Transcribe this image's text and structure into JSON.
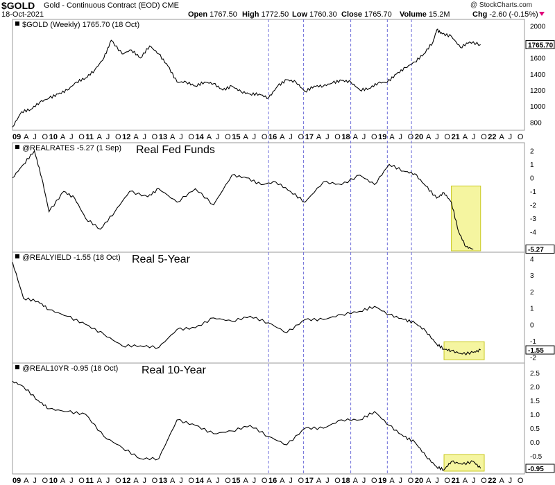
{
  "header": {
    "symbol": "$GOLD",
    "name": "Gold - Continuous Contract (EOD)",
    "exchange": "CME",
    "date": "18-Oct-2021",
    "open_label": "Open",
    "open": "1767.50",
    "high_label": "High",
    "high": "1772.50",
    "low_label": "Low",
    "low": "1760.30",
    "close_label": "Close",
    "close": "1765.70",
    "volume_label": "Volume",
    "volume": "15.2M",
    "chg_label": "Chg",
    "chg": "-2.60 (-0.15%)",
    "credit": "@ StockCharts.com"
  },
  "colors": {
    "line": "#000000",
    "grid_vertical": "#6a6ad8",
    "highlight": "#f5f5a0",
    "highlight_border": "#c8c820",
    "arrow": "#e0007a"
  },
  "chart_data": [
    {
      "type": "line",
      "title": "$GOLD (Weekly) 1765.70 (18 Oct)",
      "ylim": [
        700,
        2080
      ],
      "yticks": [
        "800",
        "1000",
        "1200",
        "1400",
        "1600",
        "2000"
      ],
      "last_value": "1765.70",
      "x_time": [
        2009.0,
        2009.25,
        2009.5,
        2009.75,
        2010.0,
        2010.25,
        2010.5,
        2010.75,
        2011.0,
        2011.25,
        2011.5,
        2011.7,
        2012.0,
        2012.25,
        2012.5,
        2012.75,
        2013.0,
        2013.25,
        2013.5,
        2013.75,
        2014.0,
        2014.25,
        2014.5,
        2014.75,
        2015.0,
        2015.25,
        2015.5,
        2015.75,
        2016.0,
        2016.25,
        2016.5,
        2016.75,
        2017.0,
        2017.25,
        2017.5,
        2017.75,
        2018.0,
        2018.25,
        2018.5,
        2018.75,
        2019.0,
        2019.25,
        2019.5,
        2019.75,
        2020.0,
        2020.25,
        2020.5,
        2020.6,
        2020.75,
        2021.0,
        2021.25,
        2021.5,
        2021.8
      ],
      "values": [
        740,
        930,
        960,
        1050,
        1100,
        1150,
        1200,
        1300,
        1350,
        1450,
        1600,
        1820,
        1650,
        1700,
        1600,
        1750,
        1650,
        1500,
        1300,
        1300,
        1250,
        1300,
        1280,
        1200,
        1250,
        1180,
        1150,
        1150,
        1100,
        1250,
        1330,
        1300,
        1180,
        1250,
        1250,
        1290,
        1320,
        1300,
        1200,
        1220,
        1290,
        1300,
        1400,
        1480,
        1550,
        1650,
        1800,
        1950,
        1900,
        1870,
        1730,
        1800,
        1765.7
      ]
    },
    {
      "type": "line",
      "title": "@REALRATES -5.27 (1 Sep)",
      "annotation": "Real Fed Funds",
      "ylim": [
        -5.5,
        2.6
      ],
      "yticks": [
        "-4",
        "-3",
        "-2",
        "-1",
        "0",
        "1",
        "2"
      ],
      "last_value": "-5.27",
      "x_time": [
        2009.0,
        2009.3,
        2009.6,
        2009.8,
        2010.0,
        2010.4,
        2010.7,
        2011.0,
        2011.4,
        2011.8,
        2012.2,
        2012.7,
        2013.0,
        2013.5,
        2014.0,
        2014.5,
        2015.0,
        2015.4,
        2015.8,
        2016.2,
        2016.6,
        2017.0,
        2017.5,
        2018.0,
        2018.5,
        2018.9,
        2019.3,
        2019.7,
        2020.0,
        2020.3,
        2020.6,
        2020.8,
        2021.0,
        2021.2,
        2021.4,
        2021.6
      ],
      "values": [
        0.0,
        1.0,
        2.0,
        0.0,
        -2.5,
        -1.0,
        -1.5,
        -3.0,
        -3.8,
        -2.5,
        -1.0,
        -1.4,
        -0.8,
        -1.8,
        -0.8,
        -2.0,
        0.2,
        0.0,
        -0.5,
        -0.3,
        -1.0,
        -1.8,
        -0.3,
        -0.5,
        0.2,
        -0.5,
        1.0,
        0.5,
        0.3,
        -0.6,
        -1.5,
        -1.1,
        -1.8,
        -4.0,
        -5.1,
        -5.27
      ]
    },
    {
      "type": "line",
      "title": "@REALYIELD -1.55 (18 Oct)",
      "annotation": "Real 5-Year",
      "ylim": [
        -2.35,
        4.4
      ],
      "yticks": [
        "-2",
        "-1",
        "0",
        "1",
        "2",
        "3",
        "4"
      ],
      "last_value": "-1.55",
      "x_time": [
        2009.0,
        2009.3,
        2009.7,
        2010.0,
        2010.5,
        2011.0,
        2011.5,
        2012.0,
        2012.5,
        2013.0,
        2013.5,
        2014.0,
        2014.5,
        2015.0,
        2015.5,
        2016.0,
        2016.5,
        2017.0,
        2017.5,
        2018.0,
        2018.5,
        2018.9,
        2019.3,
        2019.7,
        2020.0,
        2020.3,
        2020.6,
        2020.8,
        2021.0,
        2021.3,
        2021.6,
        2021.8
      ],
      "values": [
        3.8,
        1.6,
        1.4,
        0.9,
        0.5,
        0.0,
        -0.6,
        -1.3,
        -1.3,
        -1.4,
        -0.3,
        -0.2,
        0.4,
        0.2,
        0.5,
        0.1,
        -0.5,
        0.3,
        0.3,
        0.6,
        0.8,
        1.1,
        0.6,
        0.3,
        0.1,
        -0.4,
        -1.2,
        -1.5,
        -1.6,
        -1.8,
        -1.7,
        -1.55
      ]
    },
    {
      "type": "line",
      "title": "@REAL10YR -0.95 (18 Oct)",
      "annotation": "Real 10-Year",
      "ylim": [
        -1.15,
        2.85
      ],
      "yticks": [
        "-1",
        "-0.5",
        "0.0",
        "0.5",
        "1.0",
        "1.5",
        "2.0",
        "2.5"
      ],
      "last_value": "-0.95",
      "x_time": [
        2009.0,
        2009.3,
        2009.7,
        2010.0,
        2010.5,
        2011.0,
        2011.5,
        2012.0,
        2012.5,
        2013.0,
        2013.5,
        2014.0,
        2014.5,
        2015.0,
        2015.5,
        2016.0,
        2016.5,
        2017.0,
        2017.5,
        2018.0,
        2018.5,
        2018.9,
        2019.3,
        2019.7,
        2020.0,
        2020.3,
        2020.6,
        2020.8,
        2021.0,
        2021.3,
        2021.6,
        2021.8
      ],
      "values": [
        2.2,
        2.0,
        1.5,
        1.2,
        1.1,
        1.0,
        0.2,
        -0.2,
        -0.6,
        -0.6,
        0.8,
        0.6,
        0.3,
        0.4,
        0.6,
        0.2,
        -0.1,
        0.5,
        0.5,
        0.8,
        0.8,
        1.1,
        0.6,
        0.2,
        0.0,
        -0.5,
        -0.9,
        -1.0,
        -0.7,
        -0.8,
        -0.7,
        -0.95
      ]
    }
  ],
  "x_axis": {
    "labels": [
      "09",
      "A",
      "J",
      "O",
      "10",
      "A",
      "J",
      "O",
      "11",
      "A",
      "J",
      "O",
      "12",
      "A",
      "J",
      "O",
      "13",
      "A",
      "J",
      "O",
      "14",
      "A",
      "J",
      "O",
      "15",
      "A",
      "J",
      "O",
      "16",
      "A",
      "J",
      "O",
      "17",
      "A",
      "J",
      "O",
      "18",
      "A",
      "J",
      "O",
      "19",
      "A",
      "J",
      "O",
      "20",
      "A",
      "J",
      "O",
      "21",
      "A",
      "J",
      "O",
      "22",
      "A",
      "J",
      "O"
    ],
    "range": [
      2009.0,
      2023.0
    ],
    "event_lines": [
      2016.96,
      2019.91,
      2016.0,
      2018.25,
      2019.25
    ]
  },
  "highlights": [
    {
      "panel": 1,
      "x": [
        2021.0,
        2021.8
      ],
      "y": [
        -5.4,
        -0.6
      ]
    },
    {
      "panel": 2,
      "x": [
        2020.8,
        2021.9
      ],
      "y": [
        -2.15,
        -1.05
      ]
    },
    {
      "panel": 3,
      "x": [
        2020.8,
        2021.9
      ],
      "y": [
        -1.05,
        -0.45
      ]
    }
  ]
}
